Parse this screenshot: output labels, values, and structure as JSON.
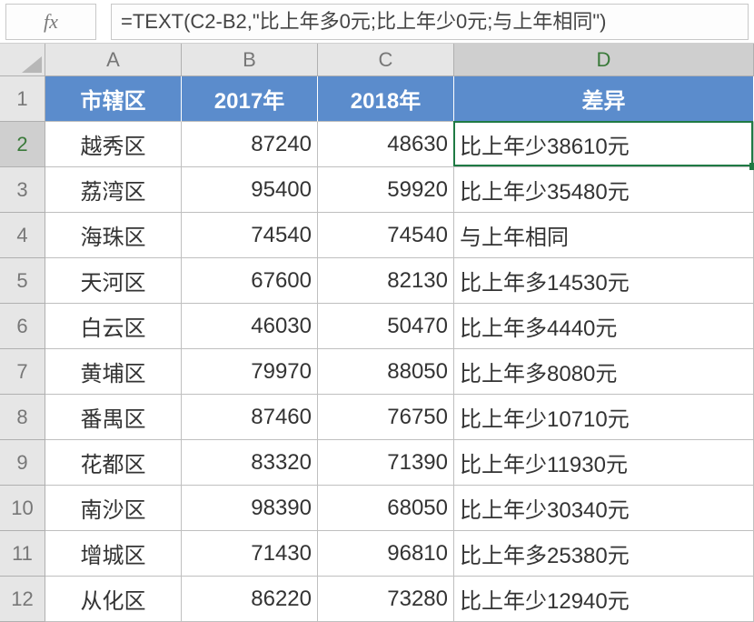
{
  "formula_bar": {
    "fx_label": "fx",
    "formula": "=TEXT(C2-B2,\"比上年多0元;比上年少0元;与上年相同\")"
  },
  "columns": {
    "letters": [
      "A",
      "B",
      "C",
      "D"
    ],
    "widths": [
      150,
      150,
      150,
      330
    ],
    "active_index": 3
  },
  "row_header": {
    "numbers": [
      "1",
      "2",
      "3",
      "4",
      "5",
      "6",
      "7",
      "8",
      "9",
      "10",
      "11",
      "12"
    ],
    "active_index": 1
  },
  "table_header_row": {
    "colA": "市辖区",
    "colB": "2017年",
    "colC": "2018年",
    "colD": "差异"
  },
  "data_rows": [
    {
      "colA": "越秀区",
      "colB": "87240",
      "colC": "48630",
      "colD": "比上年少38610元"
    },
    {
      "colA": "荔湾区",
      "colB": "95400",
      "colC": "59920",
      "colD": "比上年少35480元"
    },
    {
      "colA": "海珠区",
      "colB": "74540",
      "colC": "74540",
      "colD": "与上年相同"
    },
    {
      "colA": "天河区",
      "colB": "67600",
      "colC": "82130",
      "colD": "比上年多14530元"
    },
    {
      "colA": "白云区",
      "colB": "46030",
      "colC": "50470",
      "colD": "比上年多4440元"
    },
    {
      "colA": "黄埔区",
      "colB": "79970",
      "colC": "88050",
      "colD": "比上年多8080元"
    },
    {
      "colA": "番禺区",
      "colB": "87460",
      "colC": "76750",
      "colD": "比上年少10710元"
    },
    {
      "colA": "花都区",
      "colB": "83320",
      "colC": "71390",
      "colD": "比上年少11930元"
    },
    {
      "colA": "南沙区",
      "colB": "98390",
      "colC": "68050",
      "colD": "比上年少30340元"
    },
    {
      "colA": "增城区",
      "colB": "71430",
      "colC": "96810",
      "colD": "比上年多25380元"
    },
    {
      "colA": "从化区",
      "colB": "86220",
      "colC": "73280",
      "colD": "比上年少12940元"
    }
  ],
  "colors": {
    "header_bg": "#5b8ccc",
    "header_fg": "#ffffff",
    "grid_line": "#bfbfbf",
    "col_row_bg": "#e6e6e6",
    "col_row_active_bg": "#cfcfcf",
    "selection_border": "#1f7a44",
    "text": "#333333"
  },
  "active_cell": {
    "row": 1,
    "col": 3
  }
}
